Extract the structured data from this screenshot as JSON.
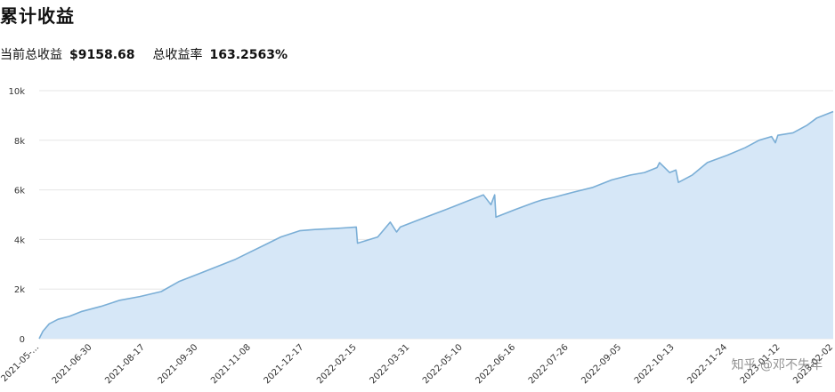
{
  "page": {
    "title": "累计收益",
    "summary": {
      "current_total_label": "当前总收益",
      "current_total_value": "$9158.68",
      "total_rate_label": "总收益率",
      "total_rate_value": "163.2563%"
    },
    "watermark": "知乎 @邓不失年"
  },
  "chart_data": {
    "type": "area",
    "title": "累计收益",
    "xlabel": "",
    "ylabel": "",
    "ylim": [
      0,
      10000
    ],
    "yticks": [
      0,
      2000,
      4000,
      6000,
      8000,
      10000
    ],
    "ytick_labels": [
      "0",
      "2k",
      "4k",
      "6k",
      "8k",
      "10k"
    ],
    "xlim": [
      "2021-05-12",
      "2023-02-02"
    ],
    "xtick_labels": [
      "2021-05-...",
      "2021-06-30",
      "2021-08-17",
      "2021-09-30",
      "2021-11-08",
      "2021-12-17",
      "2022-02-15",
      "2022-03-31",
      "2022-05-10",
      "2022-06-16",
      "2022-07-26",
      "2022-09-05",
      "2022-10-13",
      "2022-11-24",
      "2023-01-12",
      "2023-02-02"
    ],
    "grid": true,
    "colors": {
      "line": "#7aaed6",
      "fill": "#d6e7f7",
      "grid": "#e6e6e6"
    },
    "series": [
      {
        "name": "",
        "x": [
          "2021-05-12",
          "2021-05-15",
          "2021-05-20",
          "2021-05-27",
          "2021-06-05",
          "2021-06-15",
          "2021-06-30",
          "2021-07-15",
          "2021-07-31",
          "2021-08-17",
          "2021-08-31",
          "2021-09-15",
          "2021-09-30",
          "2021-10-15",
          "2021-10-25",
          "2021-11-08",
          "2021-11-20",
          "2021-12-05",
          "2021-12-17",
          "2022-01-05",
          "2022-01-19",
          "2022-01-20",
          "2022-02-05",
          "2022-02-15",
          "2022-02-20",
          "2022-02-23",
          "2022-03-10",
          "2022-03-31",
          "2022-04-15",
          "2022-04-30",
          "2022-05-06",
          "2022-05-09",
          "2022-05-10",
          "2022-05-25",
          "2022-06-10",
          "2022-06-16",
          "2022-06-25",
          "2022-07-10",
          "2022-07-26",
          "2022-08-10",
          "2022-08-25",
          "2022-09-05",
          "2022-09-15",
          "2022-09-17",
          "2022-09-25",
          "2022-09-30",
          "2022-10-02",
          "2022-10-13",
          "2022-10-25",
          "2022-11-10",
          "2022-11-24",
          "2022-12-05",
          "2022-12-15",
          "2022-12-18",
          "2022-12-20",
          "2023-01-01",
          "2023-01-12",
          "2023-01-20",
          "2023-02-02"
        ],
        "y": [
          0,
          300,
          600,
          780,
          900,
          1100,
          1300,
          1550,
          1700,
          1900,
          2300,
          2600,
          2900,
          3200,
          3450,
          3800,
          4100,
          4350,
          4400,
          4450,
          4500,
          3850,
          4100,
          4700,
          4300,
          4500,
          4800,
          5200,
          5500,
          5800,
          5400,
          5800,
          4900,
          5200,
          5500,
          5600,
          5700,
          5900,
          6100,
          6400,
          6600,
          6700,
          6900,
          7100,
          6700,
          6800,
          6300,
          6600,
          7100,
          7400,
          7700,
          8000,
          8150,
          7900,
          8200,
          8300,
          8600,
          8900,
          9158.68
        ]
      }
    ]
  }
}
